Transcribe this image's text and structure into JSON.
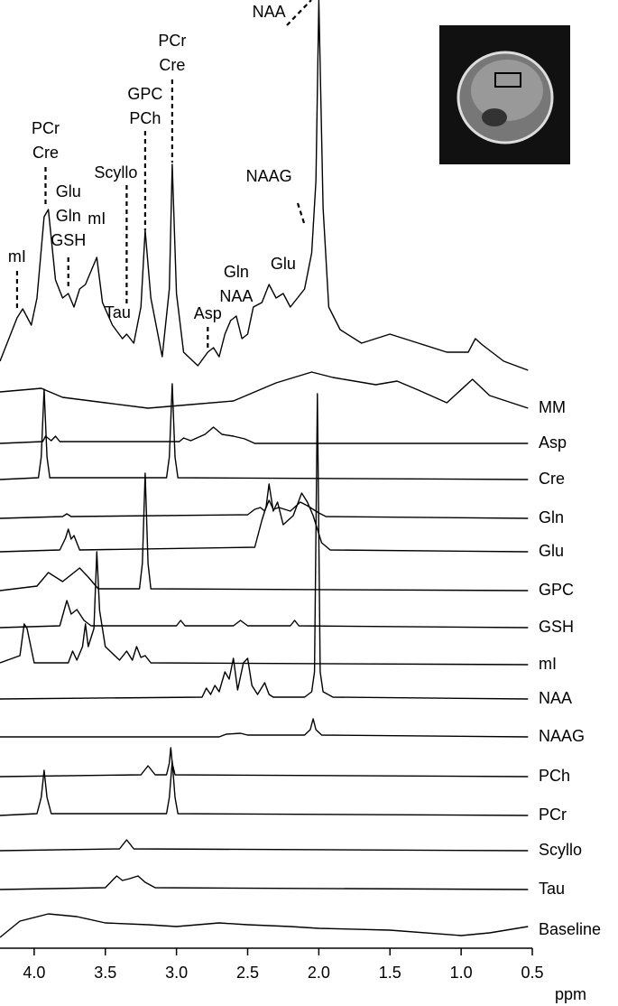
{
  "chart_data": {
    "type": "spectrum",
    "xlabel": "ppm",
    "xlim": [
      4.24,
      0.5
    ],
    "xticks": [
      {
        "value": 4.0,
        "label": "4.0"
      },
      {
        "value": 3.5,
        "label": "3.5"
      },
      {
        "value": 3.0,
        "label": "3.0"
      },
      {
        "value": 2.5,
        "label": "2.5"
      },
      {
        "value": 2.0,
        "label": "2.0"
      },
      {
        "value": 1.5,
        "label": "1.5"
      },
      {
        "value": 1.0,
        "label": "1.0"
      },
      {
        "value": 0.5,
        "label": "0.5"
      }
    ],
    "spectrum": {
      "x": [
        4.24,
        4.12,
        4.08,
        4.02,
        3.98,
        3.93,
        3.9,
        3.85,
        3.8,
        3.76,
        3.72,
        3.68,
        3.64,
        3.6,
        3.56,
        3.52,
        3.45,
        3.38,
        3.35,
        3.3,
        3.25,
        3.22,
        3.18,
        3.1,
        3.05,
        3.03,
        3.0,
        2.95,
        2.85,
        2.78,
        2.74,
        2.7,
        2.66,
        2.62,
        2.58,
        2.54,
        2.5,
        2.46,
        2.4,
        2.35,
        2.3,
        2.25,
        2.2,
        2.15,
        2.1,
        2.05,
        2.02,
        2.0,
        1.97,
        1.93,
        1.85,
        1.7,
        1.5,
        1.3,
        1.1,
        0.95,
        0.9,
        0.85,
        0.7,
        0.53
      ],
      "values": [
        0,
        48,
        58,
        40,
        70,
        160,
        168,
        90,
        70,
        75,
        60,
        80,
        85,
        100,
        115,
        65,
        40,
        25,
        30,
        20,
        60,
        145,
        70,
        5,
        80,
        218,
        75,
        10,
        -5,
        10,
        15,
        5,
        30,
        45,
        50,
        25,
        30,
        60,
        65,
        85,
        70,
        75,
        60,
        70,
        80,
        120,
        200,
        400,
        170,
        60,
        35,
        20,
        30,
        20,
        10,
        10,
        25,
        18,
        0,
        -10
      ]
    },
    "annotations": [
      {
        "lines": [
          "mI"
        ],
        "ppm": 4.12
      },
      {
        "lines": [
          "PCr",
          "Cre"
        ],
        "ppm": 3.92
      },
      {
        "lines": [
          "Glu",
          "Gln",
          "GSH"
        ],
        "ppm": 3.76
      },
      {
        "lines": [
          "mI"
        ],
        "ppm": 3.56
      },
      {
        "lines": [
          "Scyllo"
        ],
        "ppm": 3.35
      },
      {
        "lines": [
          "Tau"
        ],
        "ppm": 3.35
      },
      {
        "lines": [
          "GPC",
          "PCh"
        ],
        "ppm": 3.22
      },
      {
        "lines": [
          "PCr",
          "Cre"
        ],
        "ppm": 3.03
      },
      {
        "lines": [
          "Asp"
        ],
        "ppm": 2.78
      },
      {
        "lines": [
          "Gln",
          "NAA"
        ],
        "ppm": 2.58
      },
      {
        "lines": [
          "Glu"
        ],
        "ppm": 2.25
      },
      {
        "lines": [
          "NAAG"
        ],
        "ppm": 2.35
      },
      {
        "lines": [
          "NAA"
        ],
        "ppm": 2.35
      }
    ],
    "color": "#000000",
    "series": [
      {
        "name": "MM",
        "x": [
          4.24,
          3.95,
          3.8,
          3.5,
          3.2,
          2.9,
          2.6,
          2.3,
          2.05,
          1.9,
          1.6,
          1.45,
          1.3,
          1.1,
          0.92,
          0.8,
          0.53
        ],
        "values": [
          18,
          22,
          12,
          6,
          0,
          4,
          8,
          28,
          40,
          34,
          26,
          30,
          20,
          6,
          32,
          14,
          0
        ]
      },
      {
        "name": "Asp",
        "x": [
          4.24,
          3.94,
          3.92,
          3.88,
          3.85,
          3.82,
          2.98,
          2.95,
          2.9,
          2.8,
          2.74,
          2.68,
          2.6,
          2.52,
          2.45,
          0.53
        ],
        "values": [
          0,
          2,
          8,
          3,
          8,
          2,
          2,
          6,
          3,
          10,
          18,
          10,
          8,
          5,
          0,
          0
        ]
      },
      {
        "name": "Cre",
        "x": [
          4.24,
          3.97,
          3.95,
          3.93,
          3.91,
          3.89,
          3.07,
          3.05,
          3.03,
          3.01,
          2.99,
          0.53
        ],
        "values": [
          0,
          2,
          25,
          100,
          25,
          2,
          2,
          25,
          106,
          25,
          2,
          0
        ]
      },
      {
        "name": "Gln",
        "x": [
          4.24,
          3.8,
          3.77,
          3.74,
          2.5,
          2.45,
          2.41,
          2.38,
          2.35,
          2.32,
          2.28,
          2.2,
          2.13,
          2.08,
          2.0,
          1.95,
          0.53
        ],
        "values": [
          0,
          2,
          5,
          2,
          4,
          10,
          12,
          8,
          20,
          10,
          12,
          8,
          18,
          14,
          6,
          2,
          0
        ]
      },
      {
        "name": "Glu",
        "x": [
          4.24,
          3.82,
          3.78,
          3.76,
          3.74,
          3.72,
          3.68,
          2.45,
          2.4,
          2.37,
          2.35,
          2.32,
          2.29,
          2.25,
          2.18,
          2.12,
          2.08,
          2.04,
          1.98,
          1.92,
          0.53
        ],
        "values": [
          0,
          2,
          15,
          25,
          14,
          18,
          2,
          5,
          35,
          50,
          75,
          45,
          55,
          30,
          40,
          65,
          55,
          40,
          10,
          2,
          0
        ]
      },
      {
        "name": "GPC",
        "x": [
          4.24,
          3.98,
          3.9,
          3.8,
          3.68,
          3.62,
          3.55,
          3.26,
          3.24,
          3.22,
          3.2,
          3.18,
          0.53
        ],
        "values": [
          0,
          5,
          20,
          10,
          25,
          15,
          2,
          2,
          30,
          130,
          30,
          2,
          0
        ]
      },
      {
        "name": "GSH",
        "x": [
          4.24,
          3.82,
          3.77,
          3.74,
          3.7,
          3.65,
          3.6,
          3.0,
          2.97,
          2.94,
          2.6,
          2.55,
          2.5,
          2.2,
          2.17,
          2.14,
          0.53
        ],
        "values": [
          0,
          2,
          30,
          15,
          20,
          8,
          2,
          2,
          8,
          2,
          2,
          8,
          2,
          2,
          8,
          2,
          0
        ]
      },
      {
        "name": "mI",
        "x": [
          4.24,
          4.1,
          4.07,
          4.05,
          4.0,
          3.76,
          3.73,
          3.7,
          3.66,
          3.64,
          3.62,
          3.58,
          3.56,
          3.54,
          3.5,
          3.4,
          3.35,
          3.31,
          3.28,
          3.25,
          3.22,
          3.18,
          0.53
        ],
        "values": [
          2,
          10,
          45,
          40,
          2,
          2,
          15,
          5,
          20,
          45,
          20,
          40,
          125,
          60,
          20,
          5,
          15,
          5,
          20,
          8,
          10,
          2,
          0
        ]
      },
      {
        "name": "NAA",
        "x": [
          4.24,
          2.82,
          2.79,
          2.76,
          2.73,
          2.7,
          2.66,
          2.63,
          2.6,
          2.57,
          2.53,
          2.5,
          2.47,
          2.43,
          2.38,
          2.35,
          2.32,
          2.1,
          2.05,
          2.03,
          2.01,
          1.99,
          1.97,
          1.9,
          0.53
        ],
        "values": [
          0,
          2,
          12,
          5,
          15,
          8,
          30,
          22,
          45,
          10,
          40,
          45,
          15,
          5,
          18,
          5,
          2,
          2,
          8,
          30,
          338,
          30,
          8,
          2,
          0
        ]
      },
      {
        "name": "NAAG",
        "x": [
          4.24,
          2.7,
          2.65,
          2.55,
          2.5,
          2.1,
          2.06,
          2.04,
          2.02,
          1.98,
          0.53
        ],
        "values": [
          0,
          0,
          3,
          4,
          2,
          2,
          8,
          20,
          8,
          2,
          0
        ]
      },
      {
        "name": "PCh",
        "x": [
          4.24,
          3.25,
          3.2,
          3.15,
          3.07,
          3.05,
          3.04,
          3.03,
          3.01,
          0.53
        ],
        "values": [
          0,
          2,
          12,
          2,
          2,
          15,
          32,
          15,
          2,
          0
        ]
      },
      {
        "name": "PCr",
        "x": [
          4.24,
          3.98,
          3.95,
          3.93,
          3.91,
          3.88,
          3.07,
          3.05,
          3.03,
          3.01,
          2.99,
          0.53
        ],
        "values": [
          0,
          2,
          20,
          50,
          20,
          2,
          2,
          20,
          60,
          20,
          2,
          0
        ]
      },
      {
        "name": "Scyllo",
        "x": [
          4.24,
          3.4,
          3.35,
          3.3,
          0.53
        ],
        "values": [
          0,
          2,
          12,
          2,
          0
        ]
      },
      {
        "name": "Tau",
        "x": [
          4.24,
          3.5,
          3.42,
          3.38,
          3.33,
          3.27,
          3.22,
          3.15,
          0.53
        ],
        "values": [
          0,
          2,
          15,
          10,
          12,
          15,
          8,
          2,
          0
        ]
      },
      {
        "name": "Baseline",
        "x": [
          4.24,
          4.1,
          3.9,
          3.7,
          3.5,
          3.2,
          3.0,
          2.7,
          2.5,
          2.2,
          2.0,
          1.5,
          1.0,
          0.8,
          0.53
        ],
        "values": [
          -8,
          10,
          18,
          15,
          8,
          6,
          4,
          8,
          6,
          4,
          2,
          0,
          -6,
          -3,
          4
        ]
      }
    ]
  }
}
